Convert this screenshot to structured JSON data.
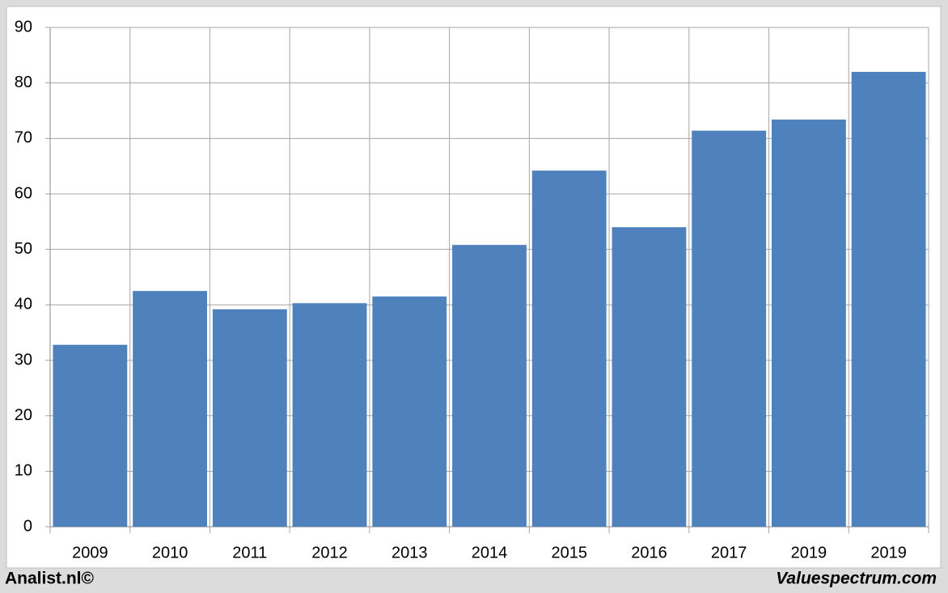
{
  "chart_data": {
    "type": "bar",
    "categories": [
      "2009",
      "2010",
      "2011",
      "2012",
      "2013",
      "2014",
      "2015",
      "2016",
      "2017",
      "2019",
      "2019"
    ],
    "values": [
      32.8,
      42.5,
      39.2,
      40.3,
      41.5,
      50.8,
      64.2,
      54.0,
      71.4,
      73.4,
      82.0
    ],
    "color": "#4f81bd",
    "ylim": [
      0,
      90
    ],
    "yticks": [
      0,
      10,
      20,
      30,
      40,
      50,
      60,
      70,
      80,
      90
    ],
    "grid": true,
    "footer_left": "Analist.nl©",
    "footer_right": "Valuespectrum.com"
  }
}
